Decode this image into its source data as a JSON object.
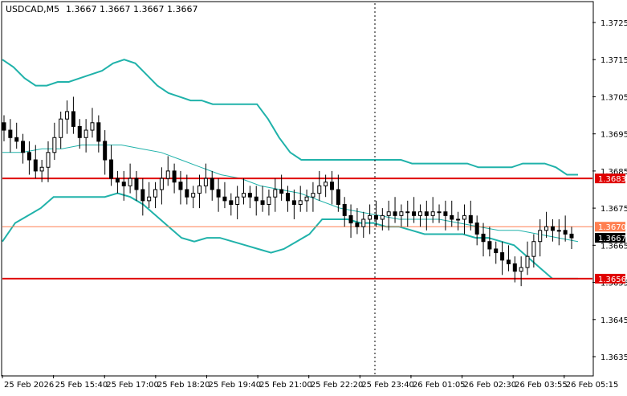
{
  "header": {
    "symbol": "USDCAD,M5",
    "ohlc": "1.3667 1.3667 1.3667 1.3667"
  },
  "colors": {
    "background": "#ffffff",
    "candle": "#000000",
    "bollinger": "#20b2aa",
    "support_resistance": "#e00000",
    "last_price_tag": "#000000",
    "price_line": "#ff7f50"
  },
  "chart_data": {
    "type": "candlestick",
    "title": "USDCAD,M5",
    "y_ticks": [
      "1.3725",
      "1.3715",
      "1.3705",
      "1.3695",
      "1.3685",
      "1.3675",
      "1.3665",
      "1.3655",
      "1.3645",
      "1.3635"
    ],
    "x_ticks": [
      "25 Feb 2026",
      "25 Feb 15:40",
      "25 Feb 17:00",
      "25 Feb 18:20",
      "25 Feb 19:40",
      "25 Feb 21:00",
      "25 Feb 22:20",
      "25 Feb 23:40",
      "26 Feb 01:05",
      "26 Feb 02:30",
      "26 Feb 03:55",
      "26 Feb 05:15"
    ],
    "ylim": [
      1.363,
      1.373
    ],
    "grid": false,
    "levels": [
      {
        "label": "1.3683",
        "value": 1.3683
      },
      {
        "label": "1.3670",
        "value": 1.367
      },
      {
        "label": "1.3656",
        "value": 1.3656
      }
    ],
    "last_price": "1.3667",
    "closes": [
      1.3696,
      1.3694,
      1.3693,
      1.369,
      1.3688,
      1.3685,
      1.3686,
      1.369,
      1.3694,
      1.3699,
      1.3701,
      1.3697,
      1.3694,
      1.3696,
      1.3698,
      1.3693,
      1.3688,
      1.3683,
      1.3682,
      1.3681,
      1.3683,
      1.368,
      1.3677,
      1.3678,
      1.368,
      1.3683,
      1.3685,
      1.3682,
      1.368,
      1.3678,
      1.3679,
      1.3681,
      1.3683,
      1.368,
      1.3678,
      1.3677,
      1.3676,
      1.3678,
      1.3679,
      1.3678,
      1.3677,
      1.3676,
      1.3678,
      1.368,
      1.3679,
      1.3677,
      1.3676,
      1.3677,
      1.3678,
      1.3679,
      1.3681,
      1.3682,
      1.368,
      1.3676,
      1.3673,
      1.3671,
      1.367,
      1.3672,
      1.3673,
      1.3672,
      1.3673,
      1.3674,
      1.3673,
      1.3674,
      1.3674,
      1.3673,
      1.3674,
      1.3673,
      1.3674,
      1.3674,
      1.3673,
      1.3672,
      1.3672,
      1.3673,
      1.3671,
      1.3668,
      1.3666,
      1.3664,
      1.3663,
      1.3661,
      1.366,
      1.3658,
      1.3659,
      1.3662,
      1.3666,
      1.3669,
      1.367,
      1.3669,
      1.3669,
      1.3668,
      1.3667
    ],
    "bollinger_upper": [
      1.3715,
      1.3713,
      1.371,
      1.3708,
      1.3708,
      1.3709,
      1.3709,
      1.371,
      1.3711,
      1.3712,
      1.3714,
      1.3715,
      1.3714,
      1.3711,
      1.3708,
      1.3706,
      1.3705,
      1.3704,
      1.3704,
      1.3703,
      1.3703,
      1.3703,
      1.3703,
      1.3703,
      1.3699,
      1.3694,
      1.369,
      1.3688,
      1.3688,
      1.3688,
      1.3688,
      1.3688,
      1.3688,
      1.3688,
      1.3688,
      1.3688,
      1.3688,
      1.3687,
      1.3687,
      1.3687,
      1.3687,
      1.3687,
      1.3687,
      1.3686,
      1.3686,
      1.3686,
      1.3686,
      1.3687,
      1.3687,
      1.3687,
      1.3686,
      1.3684,
      1.3684
    ],
    "bollinger_middle": [
      1.369,
      1.369,
      1.3691,
      1.3691,
      1.3692,
      1.3692,
      1.3692,
      1.3691,
      1.369,
      1.3688,
      1.3686,
      1.3684,
      1.3683,
      1.3681,
      1.368,
      1.3679,
      1.3677,
      1.3675,
      1.3674,
      1.3673,
      1.3672,
      1.3672,
      1.3672,
      1.3671,
      1.367,
      1.3669,
      1.3669,
      1.3668,
      1.3667,
      1.3666
    ],
    "bollinger_lower": [
      1.3666,
      1.3671,
      1.3673,
      1.3675,
      1.3678,
      1.3678,
      1.3678,
      1.3678,
      1.3678,
      1.3679,
      1.3678,
      1.3676,
      1.3673,
      1.367,
      1.3667,
      1.3666,
      1.3667,
      1.3667,
      1.3666,
      1.3665,
      1.3664,
      1.3663,
      1.3664,
      1.3666,
      1.3668,
      1.3672,
      1.3672,
      1.3672,
      1.3671,
      1.3671,
      1.367,
      1.367,
      1.3669,
      1.3668,
      1.3668,
      1.3668,
      1.3668,
      1.3667,
      1.3667,
      1.3666,
      1.3665,
      1.3662,
      1.3659,
      1.3656,
      1.3656,
      1.3656
    ]
  }
}
